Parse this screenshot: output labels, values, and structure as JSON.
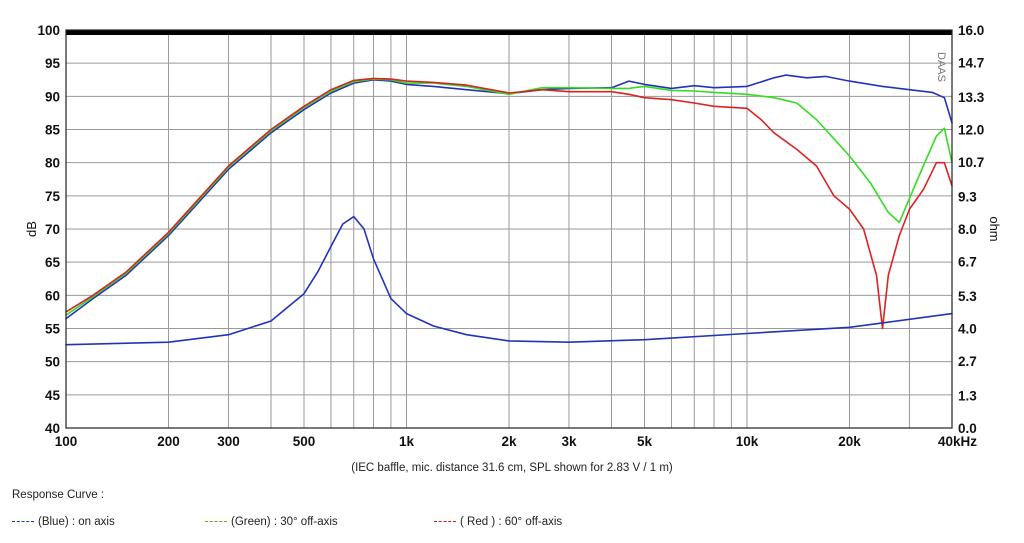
{
  "chart_data": {
    "type": "line",
    "x_scale": "log",
    "x_range": [
      100,
      40000
    ],
    "x_ticks": [
      {
        "value": 100,
        "label": "100"
      },
      {
        "value": 200,
        "label": "200"
      },
      {
        "value": 300,
        "label": "300"
      },
      {
        "value": 500,
        "label": "500"
      },
      {
        "value": 1000,
        "label": "1k"
      },
      {
        "value": 2000,
        "label": "2k"
      },
      {
        "value": 3000,
        "label": "3k"
      },
      {
        "value": 5000,
        "label": "5k"
      },
      {
        "value": 10000,
        "label": "10k"
      },
      {
        "value": 20000,
        "label": "20k"
      },
      {
        "value": 40000,
        "label": "40kHz"
      }
    ],
    "y_left": {
      "label": "dB",
      "range": [
        40,
        100
      ],
      "ticks": [
        "40",
        "45",
        "50",
        "55",
        "60",
        "65",
        "70",
        "75",
        "80",
        "85",
        "90",
        "95",
        "100"
      ]
    },
    "y_right": {
      "label": "ohm",
      "range": [
        0,
        16
      ],
      "ticks": [
        "0.0",
        "1.3",
        "2.7",
        "4.0",
        "5.3",
        "6.7",
        "8.0",
        "9.3",
        "10.7",
        "12.0",
        "13.3",
        "14.7",
        "16.0"
      ]
    },
    "grid": true,
    "watermark": "DAAS",
    "caption": "(IEC baffle, mic. distance 31.6 cm, SPL shown for 2.83 V / 1 m)",
    "series": [
      {
        "name": "on axis",
        "color": "#2233bb",
        "axis": "left",
        "x": [
          100,
          120,
          150,
          200,
          250,
          300,
          400,
          500,
          600,
          700,
          800,
          900,
          1000,
          1200,
          1500,
          2000,
          2500,
          3000,
          4000,
          4500,
          5000,
          6000,
          7000,
          8000,
          10000,
          12000,
          13000,
          15000,
          17000,
          20000,
          25000,
          30000,
          35000,
          38000,
          40000
        ],
        "y": [
          56.5,
          59.5,
          63,
          69,
          74.5,
          79,
          84.5,
          88,
          90.5,
          92,
          92.5,
          92.3,
          91.8,
          91.5,
          91,
          90.4,
          91,
          91.2,
          91.3,
          92.3,
          91.8,
          91.2,
          91.6,
          91.3,
          91.5,
          92.8,
          93.2,
          92.8,
          93,
          92.3,
          91.5,
          91,
          90.6,
          89.8,
          86
        ]
      },
      {
        "name": "30° off-axis",
        "color": "#33dd22",
        "axis": "left",
        "x": [
          100,
          120,
          150,
          200,
          250,
          300,
          400,
          500,
          600,
          700,
          800,
          900,
          1000,
          1200,
          1500,
          2000,
          2500,
          3000,
          4000,
          4500,
          5000,
          6000,
          7000,
          8000,
          10000,
          12000,
          14000,
          16000,
          20000,
          23000,
          26000,
          28000,
          32000,
          36000,
          38000,
          40000
        ],
        "y": [
          57,
          59.8,
          63.3,
          69.3,
          74.8,
          79.3,
          84.8,
          88.3,
          90.8,
          92.2,
          92.6,
          92.5,
          92,
          92,
          91.5,
          90.3,
          91.3,
          91.3,
          91.2,
          91.2,
          91.5,
          90.9,
          90.8,
          90.6,
          90.3,
          89.8,
          89,
          86.5,
          81,
          77,
          72.5,
          71,
          78,
          84,
          85.2,
          80
        ]
      },
      {
        "name": "60° off-axis",
        "color": "#dd2222",
        "axis": "left",
        "x": [
          100,
          120,
          150,
          200,
          250,
          300,
          400,
          500,
          600,
          700,
          800,
          900,
          1000,
          1200,
          1500,
          2000,
          2500,
          3000,
          4000,
          4500,
          5000,
          6000,
          7000,
          8000,
          10000,
          11000,
          12000,
          14000,
          16000,
          18000,
          20000,
          22000,
          24000,
          25000,
          26000,
          28000,
          30000,
          33000,
          36000,
          38000,
          40000
        ],
        "y": [
          57.5,
          60,
          63.5,
          69.5,
          75,
          79.5,
          85,
          88.5,
          91,
          92.4,
          92.7,
          92.6,
          92.3,
          92.1,
          91.7,
          90.5,
          91,
          90.7,
          90.7,
          90.3,
          89.8,
          89.5,
          89,
          88.5,
          88.2,
          86.5,
          84.5,
          82,
          79.5,
          75,
          73,
          70,
          63,
          55,
          63,
          69,
          73,
          76,
          80,
          80,
          76.5
        ]
      },
      {
        "name": "impedance",
        "color": "#2233bb",
        "axis": "right",
        "x": [
          100,
          200,
          300,
          400,
          500,
          550,
          600,
          650,
          700,
          750,
          800,
          900,
          1000,
          1200,
          1500,
          2000,
          3000,
          5000,
          10000,
          20000,
          40000
        ],
        "y": [
          3.35,
          3.45,
          3.75,
          4.3,
          5.4,
          6.3,
          7.3,
          8.2,
          8.5,
          8.0,
          6.8,
          5.2,
          4.6,
          4.1,
          3.75,
          3.5,
          3.45,
          3.55,
          3.8,
          4.05,
          4.6
        ]
      }
    ]
  },
  "caption_text": "(IEC baffle, mic. distance 31.6 cm, SPL shown for 2.83 V / 1 m)",
  "response_title": "Response Curve :",
  "legend": [
    {
      "label": "(Blue)  : on axis",
      "color": "#2233bb"
    },
    {
      "label": "(Green) : 30° off-axis",
      "color": "#7a9a2a"
    },
    {
      "label": "( Red ) : 60° off-axis",
      "color": "#cc2222"
    }
  ]
}
